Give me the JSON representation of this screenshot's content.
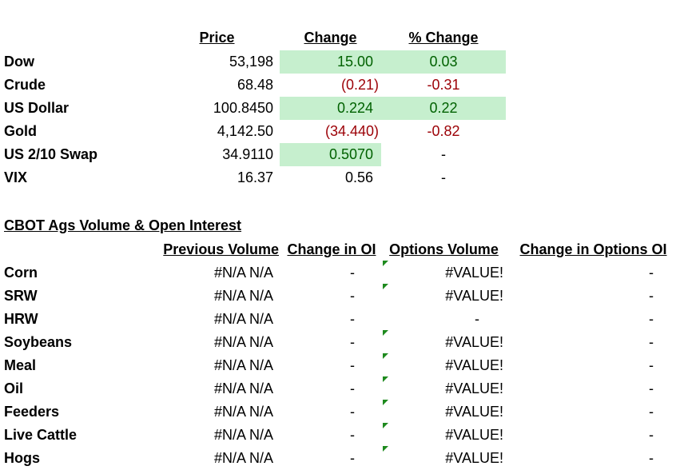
{
  "markets": {
    "columns": [
      "Price",
      "Change ",
      "% Change"
    ],
    "rows": [
      {
        "label": "Dow",
        "price": "53,198",
        "change": "15.00",
        "pct_change": "0.03"
      },
      {
        "label": "Crude",
        "price": "68.48",
        "change": "(0.21)",
        "pct_change": "-0.31"
      },
      {
        "label": "US Dollar",
        "price": "100.8450",
        "change": "0.224",
        "pct_change": "0.22"
      },
      {
        "label": "Gold",
        "price": "4,142.50",
        "change": "(34.440)",
        "pct_change": "-0.82"
      },
      {
        "label": "US 2/10 Swap",
        "price": "34.9110",
        "change": "0.5070",
        "pct_change": "-"
      },
      {
        "label": "VIX",
        "price": "16.37",
        "change": "0.56",
        "pct_change": "-"
      }
    ]
  },
  "ags": {
    "title": "CBOT Ags Volume & Open Interest",
    "columns": [
      "Previous Volume",
      "Change in OI",
      "Options Volume",
      "Change in Options OI"
    ],
    "rows": [
      {
        "label": "Corn",
        "previous_volume": "#N/A N/A",
        "change_in_oi": "-",
        "options_volume": "#VALUE!",
        "change_in_options_oi": "-"
      },
      {
        "label": "SRW",
        "previous_volume": "#N/A N/A",
        "change_in_oi": "-",
        "options_volume": "#VALUE!",
        "change_in_options_oi": "-"
      },
      {
        "label": "HRW",
        "previous_volume": "#N/A N/A",
        "change_in_oi": "-",
        "options_volume": "-",
        "change_in_options_oi": "-"
      },
      {
        "label": "Soybeans",
        "previous_volume": "#N/A N/A",
        "change_in_oi": "-",
        "options_volume": "#VALUE!",
        "change_in_options_oi": "-"
      },
      {
        "label": "Meal",
        "previous_volume": "#N/A N/A",
        "change_in_oi": "-",
        "options_volume": "#VALUE!",
        "change_in_options_oi": "-"
      },
      {
        "label": "Oil",
        "previous_volume": "#N/A N/A",
        "change_in_oi": "-",
        "options_volume": "#VALUE!",
        "change_in_options_oi": "-"
      },
      {
        "label": "Feeders",
        "previous_volume": "#N/A N/A",
        "change_in_oi": "-",
        "options_volume": "#VALUE!",
        "change_in_options_oi": "-"
      },
      {
        "label": "Live Cattle",
        "previous_volume": "#N/A N/A",
        "change_in_oi": "-",
        "options_volume": "#VALUE!",
        "change_in_options_oi": "-"
      },
      {
        "label": "Hogs",
        "previous_volume": "#N/A N/A",
        "change_in_oi": "-",
        "options_volume": "#VALUE!",
        "change_in_options_oi": "-"
      }
    ]
  }
}
